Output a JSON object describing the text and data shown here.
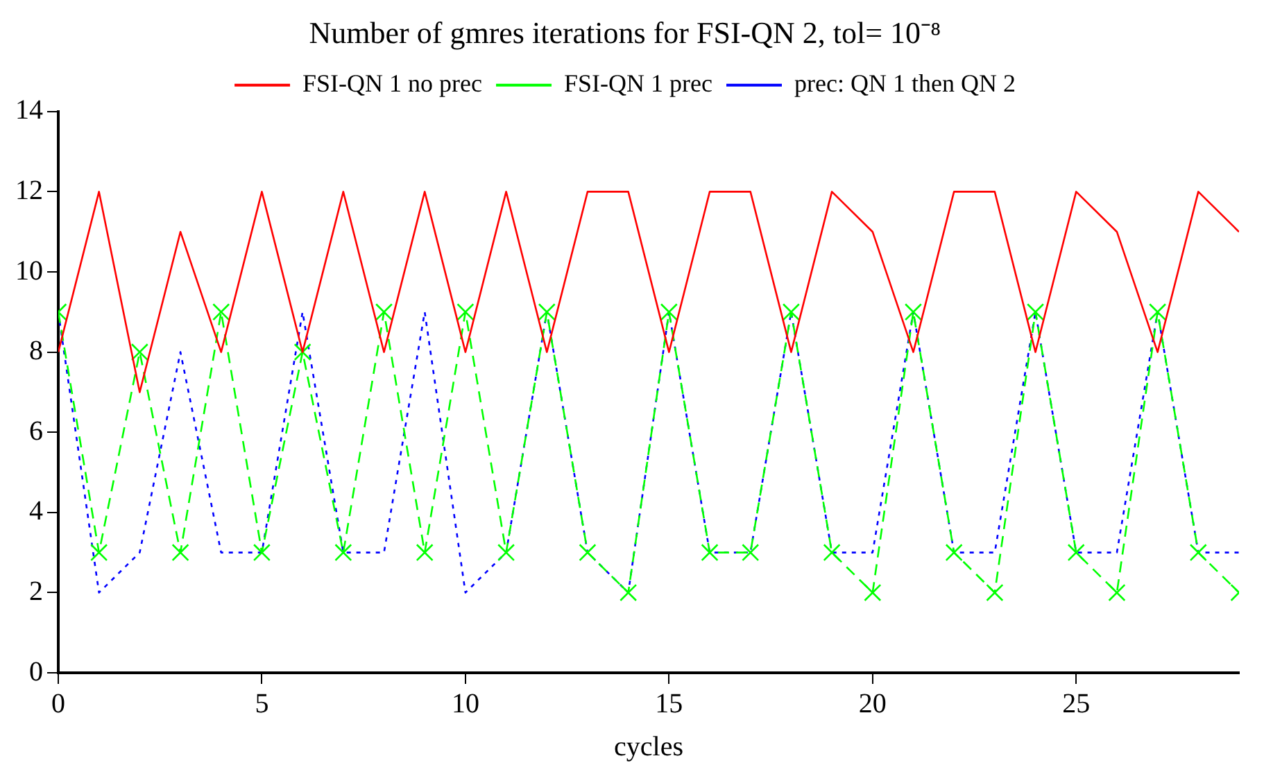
{
  "chart_data": {
    "type": "line",
    "title": "Number of gmres iterations for FSI-QN 2, tol= 10⁻⁸",
    "xlabel": "cycles",
    "x": [
      0,
      1,
      2,
      3,
      4,
      5,
      6,
      7,
      8,
      9,
      10,
      11,
      12,
      13,
      14,
      15,
      16,
      17,
      18,
      19,
      20,
      21,
      22,
      23,
      24,
      25,
      26,
      27,
      28,
      29
    ],
    "series": [
      {
        "name": "FSI-QN 1 no prec",
        "color": "#ff0000",
        "line_style": "solid",
        "marker": "none",
        "values": [
          8,
          12,
          7,
          11,
          8,
          12,
          8,
          12,
          8,
          12,
          8,
          12,
          8,
          12,
          12,
          8,
          12,
          12,
          8,
          12,
          11,
          8,
          12,
          12,
          8,
          12,
          11,
          8,
          12,
          11
        ]
      },
      {
        "name": "FSI-QN 1 prec",
        "color": "#00ff00",
        "line_style": "dashed",
        "marker": "cross",
        "values": [
          9,
          3,
          8,
          3,
          9,
          3,
          8,
          3,
          9,
          3,
          9,
          3,
          9,
          3,
          2,
          9,
          3,
          3,
          9,
          3,
          2,
          9,
          3,
          2,
          9,
          3,
          2,
          9,
          3,
          2
        ]
      },
      {
        "name": "prec: QN 1 then QN 2",
        "color": "#0000ff",
        "line_style": "dotted",
        "marker": "none",
        "values": [
          9,
          2,
          3,
          8,
          3,
          3,
          9,
          3,
          3,
          9,
          2,
          3,
          9,
          3,
          2,
          9,
          3,
          3,
          9,
          3,
          3,
          9,
          3,
          3,
          9,
          3,
          3,
          9,
          3,
          3
        ]
      }
    ],
    "xlim": [
      0,
      29
    ],
    "xticks": [
      0,
      5,
      10,
      15,
      20,
      25
    ],
    "ylim": [
      0,
      14
    ],
    "yticks": [
      0,
      2,
      4,
      6,
      8,
      10,
      12,
      14
    ],
    "grid": false,
    "legend": "top"
  }
}
